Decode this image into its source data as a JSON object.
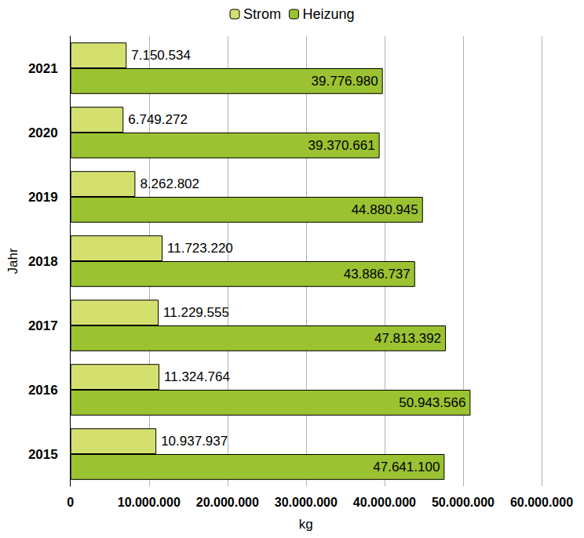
{
  "chart_data": {
    "type": "bar",
    "orientation": "horizontal",
    "xlabel": "kg",
    "ylabel": "Jahr",
    "categories": [
      "2015",
      "2016",
      "2017",
      "2018",
      "2019",
      "2020",
      "2021"
    ],
    "series": [
      {
        "name": "Strom",
        "color": "#d4e06e",
        "values": [
          10937937,
          11324764,
          11229555,
          11723220,
          8262802,
          6749272,
          7150534
        ],
        "value_labels": [
          "10.937.937",
          "11.324.764",
          "11.229.555",
          "11.723.220",
          "8.262.802",
          "6.749.272",
          "7.150.534"
        ]
      },
      {
        "name": "Heizung",
        "color": "#9bc231",
        "values": [
          47641100,
          50943566,
          47813392,
          43886737,
          44880945,
          39370661,
          39776980
        ],
        "value_labels": [
          "47.641.100",
          "50.943.566",
          "47.813.392",
          "43.886.737",
          "44.880.945",
          "39.370.661",
          "39.776.980"
        ]
      }
    ],
    "xlim": [
      0,
      60000000
    ],
    "xticks": [
      0,
      {
        "value": 10000000,
        "label": "10.000.000"
      },
      {
        "value": 20000000,
        "label": "20.000.000"
      },
      {
        "value": 30000000,
        "label": "30.000.000"
      },
      {
        "value": 40000000,
        "label": "40.000.000"
      },
      {
        "value": 50000000,
        "label": "50.000.000"
      },
      {
        "value": 60000000,
        "label": "60.000.000"
      }
    ],
    "grid": true,
    "legend": "top",
    "data_labels": true
  }
}
